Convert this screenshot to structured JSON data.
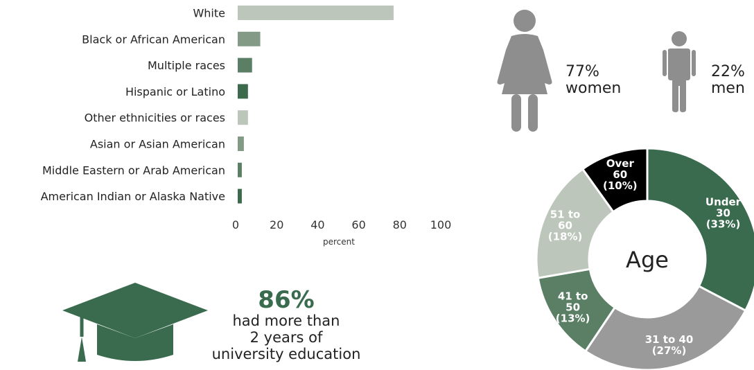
{
  "chart_data": [
    {
      "type": "bar",
      "orientation": "horizontal",
      "categories": [
        "White",
        "Black or African American",
        "Multiple races",
        "Hispanic or Latino",
        "Other ethnicities or races",
        "Asian or Asian American",
        "Middle Eastern or Arab American",
        "American Indian or Alaska Native"
      ],
      "values": [
        76,
        11,
        7,
        5,
        5,
        3,
        2,
        2
      ],
      "bar_colors": [
        "#bcc6bb",
        "#839a87",
        "#5a7f64",
        "#3b6b4c",
        "#bcc6bb",
        "#839a87",
        "#5a7f64",
        "#3b6b4c"
      ],
      "xlabel": "percent",
      "xlim": [
        0,
        100
      ],
      "xticks": [
        "0",
        "20",
        "40",
        "60",
        "80",
        "100"
      ],
      "grid": false
    },
    {
      "type": "pie",
      "style": "donut",
      "center_label": "Age",
      "slices": [
        {
          "label_lines": [
            "Under",
            "30",
            "(33%)"
          ],
          "value": 33,
          "color": "#3a6b4f"
        },
        {
          "label_lines": [
            "31 to 40",
            "(27%)"
          ],
          "value": 27,
          "color": "#9a9a9a"
        },
        {
          "label_lines": [
            "41 to",
            "50",
            "(13%)"
          ],
          "value": 13,
          "color": "#5a7f64"
        },
        {
          "label_lines": [
            "51 to",
            "60",
            "(18%)"
          ],
          "value": 18,
          "color": "#bcc6bb"
        },
        {
          "label_lines": [
            "Over",
            "60",
            "(10%)"
          ],
          "value": 10,
          "color": "#000000"
        }
      ]
    }
  ],
  "gender": {
    "women": {
      "percent": "77%",
      "label": "women",
      "value": 77
    },
    "men": {
      "percent": "22%",
      "label": "men",
      "value": 22
    },
    "icon_color": "#8e8e8e"
  },
  "education": {
    "percent": "86%",
    "lines": [
      "had more than",
      "2 years of",
      "university education"
    ],
    "icon": "graduation-cap-icon",
    "color": "#3a6b4f"
  },
  "icons": [
    "woman-icon",
    "man-icon",
    "graduation-cap-icon"
  ]
}
